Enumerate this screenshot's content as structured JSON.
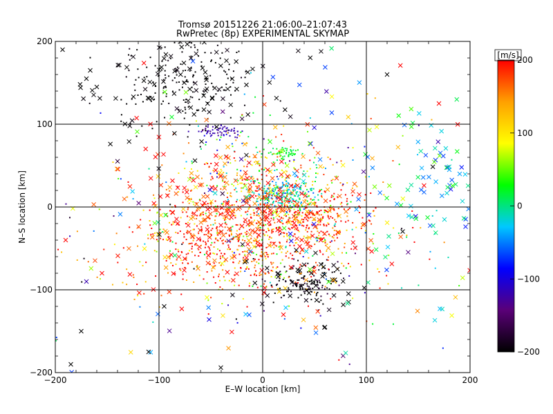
{
  "chart_data": {
    "type": "scatter",
    "title": "Tromsø 20151226 21:06:00–21:07:43",
    "subtitle": "RwPretec (8p) EXPERIMENTAL SKYMAP",
    "xlabel": "E–W location [km]",
    "ylabel": "N–S location [km]",
    "xlim": [
      -200,
      200
    ],
    "ylim": [
      -200,
      200
    ],
    "xticks": [
      -200,
      -100,
      0,
      100,
      200
    ],
    "yticks": [
      -200,
      -100,
      0,
      100,
      200
    ],
    "grid": true,
    "colorbar": {
      "label": "[m/s]",
      "min": -200,
      "max": 200,
      "ticks": [
        200,
        100,
        0,
        -100,
        -200
      ],
      "stops": [
        "#000000",
        "#5a0078",
        "#0000ff",
        "#00c8ff",
        "#00ff00",
        "#ffff00",
        "#ffa000",
        "#ff0000"
      ]
    },
    "series": [
      {
        "marker": "dot",
        "kind": "clusters",
        "clusters": [
          {
            "cx": -80,
            "cy": 150,
            "sx": 35,
            "sy": 30,
            "n": 180,
            "vmean": -200,
            "vsd": 5
          },
          {
            "cx": 40,
            "cy": -90,
            "sx": 15,
            "sy": 12,
            "n": 140,
            "vmean": -195,
            "vsd": 15
          },
          {
            "cx": 20,
            "cy": 15,
            "sx": 15,
            "sy": 10,
            "n": 240,
            "vmean": -20,
            "vsd": 30
          },
          {
            "cx": -40,
            "cy": 92,
            "sx": 12,
            "sy": 4,
            "n": 60,
            "vmean": -120,
            "vsd": 10
          },
          {
            "cx": 20,
            "cy": 65,
            "sx": 8,
            "sy": 4,
            "n": 50,
            "vmean": 20,
            "vsd": 10
          },
          {
            "cx": 0,
            "cy": -20,
            "sx": 45,
            "sy": 35,
            "n": 520,
            "vmean": 150,
            "vsd": 70
          },
          {
            "cx": -20,
            "cy": -60,
            "sx": 60,
            "sy": 30,
            "n": 220,
            "vmean": 170,
            "vsd": 60
          },
          {
            "cx": 0,
            "cy": 40,
            "sx": 45,
            "sy": 30,
            "n": 200,
            "vmean": 80,
            "vsd": 90
          },
          {
            "cx": 50,
            "cy": -10,
            "sx": 25,
            "sy": 15,
            "n": 160,
            "vmean": 195,
            "vsd": 10
          },
          {
            "cx": -60,
            "cy": -30,
            "sx": 30,
            "sy": 25,
            "n": 120,
            "vmean": 195,
            "vsd": 10
          },
          {
            "cx": 0,
            "cy": -30,
            "sx": 110,
            "sy": 90,
            "n": 180,
            "vmean": 0,
            "vsd": 110
          }
        ]
      },
      {
        "marker": "x",
        "kind": "clusters",
        "clusters": [
          {
            "cx": -80,
            "cy": 150,
            "sx": 55,
            "sy": 35,
            "n": 110,
            "vmean": -200,
            "vsd": 5
          },
          {
            "cx": 40,
            "cy": -90,
            "sx": 25,
            "sy": 20,
            "n": 40,
            "vmean": -200,
            "vsd": 5
          },
          {
            "cx": 0,
            "cy": -5,
            "sx": 50,
            "sy": 40,
            "n": 190,
            "vmean": 175,
            "vsd": 40
          },
          {
            "cx": -70,
            "cy": 10,
            "sx": 40,
            "sy": 50,
            "n": 90,
            "vmean": 190,
            "vsd": 30
          },
          {
            "cx": 160,
            "cy": 30,
            "sx": 30,
            "sy": 40,
            "n": 60,
            "vmean": -20,
            "vsd": 40
          },
          {
            "cx": 30,
            "cy": 0,
            "sx": 120,
            "sy": 110,
            "n": 170,
            "vmean": 0,
            "vsd": 120
          }
        ]
      },
      {
        "marker": "x",
        "kind": "points",
        "points": [
          [
            -193,
            190,
            -200
          ],
          [
            -185,
            -190,
            -200
          ],
          [
            -175,
            -150,
            -200
          ],
          [
            -170,
            -90,
            -120
          ],
          [
            -190,
            -40,
            200
          ],
          [
            -160,
            145,
            -200
          ],
          [
            -155,
            -80,
            200
          ],
          [
            -170,
            155,
            -200
          ],
          [
            170,
            125,
            200
          ],
          [
            180,
            45,
            -40
          ],
          [
            190,
            40,
            -40
          ],
          [
            -110,
            -175,
            -200
          ],
          [
            -95,
            -120,
            -200
          ],
          [
            60,
            -145,
            -200
          ],
          [
            20,
            -130,
            200
          ],
          [
            120,
            160,
            -200
          ]
        ]
      }
    ]
  }
}
